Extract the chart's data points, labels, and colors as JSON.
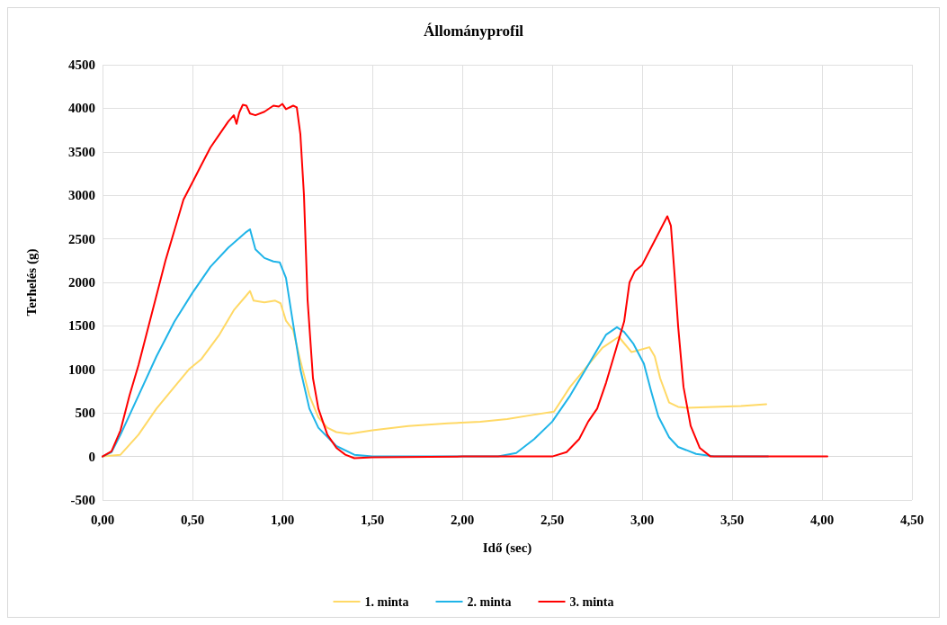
{
  "chart_data": {
    "type": "line",
    "title": "Állományprofil",
    "xlabel": "Idő (sec)",
    "ylabel": "Terhelés (g)",
    "xlim": [
      0,
      4.5
    ],
    "xticks": [
      {
        "value": 0,
        "label": "0,00"
      },
      {
        "value": 0.5,
        "label": "0,50"
      },
      {
        "value": 1,
        "label": "1,00"
      },
      {
        "value": 1.5,
        "label": "1,50"
      },
      {
        "value": 2,
        "label": "2,00"
      },
      {
        "value": 2.5,
        "label": "2,50"
      },
      {
        "value": 3,
        "label": "3,00"
      },
      {
        "value": 3.5,
        "label": "3,50"
      },
      {
        "value": 4,
        "label": "4,00"
      },
      {
        "value": 4.5,
        "label": "4,50"
      }
    ],
    "ylim": [
      -500,
      4500
    ],
    "yticks": [
      -500,
      0,
      500,
      1000,
      1500,
      2000,
      2500,
      3000,
      3500,
      4000,
      4500
    ],
    "grid": true,
    "legend": "bottom",
    "marker": "none",
    "line_style": "solid",
    "series": [
      {
        "name": "1. minta",
        "color": "#ffd966",
        "x": [
          0,
          0.1,
          0.2,
          0.3,
          0.4,
          0.48,
          0.55,
          0.65,
          0.73,
          0.8,
          0.82,
          0.84,
          0.9,
          0.96,
          0.99,
          1.02,
          1.06,
          1.1,
          1.15,
          1.2,
          1.25,
          1.3,
          1.37,
          1.5,
          1.7,
          1.92,
          2.1,
          2.25,
          2.4,
          2.51,
          2.6,
          2.7,
          2.78,
          2.87,
          2.9,
          2.94,
          2.98,
          3.04,
          3.07,
          3.1,
          3.15,
          3.2,
          3.25,
          3.4,
          3.55,
          3.69
        ],
        "values": [
          0,
          20,
          250,
          550,
          800,
          1000,
          1120,
          1400,
          1680,
          1850,
          1900,
          1790,
          1770,
          1790,
          1760,
          1560,
          1450,
          1100,
          700,
          450,
          330,
          280,
          260,
          300,
          350,
          380,
          400,
          430,
          480,
          515,
          800,
          1050,
          1250,
          1375,
          1300,
          1200,
          1220,
          1255,
          1150,
          900,
          620,
          570,
          560,
          570,
          580,
          600
        ]
      },
      {
        "name": "2. minta",
        "color": "#1fb4e8",
        "x": [
          0,
          0.05,
          0.1,
          0.2,
          0.3,
          0.4,
          0.5,
          0.6,
          0.7,
          0.8,
          0.82,
          0.85,
          0.9,
          0.95,
          0.985,
          1.02,
          1.05,
          1.1,
          1.15,
          1.2,
          1.3,
          1.4,
          1.5,
          2.2,
          2.3,
          2.4,
          2.5,
          2.6,
          2.7,
          2.8,
          2.86,
          2.9,
          2.95,
          3.01,
          3.05,
          3.09,
          3.15,
          3.2,
          3.3,
          3.4,
          3.7
        ],
        "values": [
          0,
          50,
          250,
          700,
          1150,
          1550,
          1880,
          2180,
          2400,
          2580,
          2610,
          2380,
          2280,
          2240,
          2230,
          2050,
          1650,
          1000,
          550,
          330,
          120,
          20,
          0,
          0,
          40,
          200,
          400,
          700,
          1050,
          1400,
          1485,
          1430,
          1300,
          1065,
          750,
          460,
          220,
          110,
          30,
          0,
          0
        ]
      },
      {
        "name": "3. minta",
        "color": "#ff0000",
        "x": [
          0,
          0.05,
          0.1,
          0.15,
          0.2,
          0.25,
          0.3,
          0.35,
          0.4,
          0.45,
          0.5,
          0.55,
          0.6,
          0.65,
          0.7,
          0.73,
          0.745,
          0.76,
          0.78,
          0.8,
          0.82,
          0.85,
          0.9,
          0.95,
          0.98,
          1.0,
          1.02,
          1.06,
          1.08,
          1.1,
          1.12,
          1.14,
          1.17,
          1.2,
          1.25,
          1.3,
          1.35,
          1.4,
          1.5,
          2.0,
          2.5,
          2.58,
          2.65,
          2.7,
          2.75,
          2.8,
          2.85,
          2.9,
          2.93,
          2.96,
          3.0,
          3.05,
          3.1,
          3.14,
          3.16,
          3.18,
          3.2,
          3.23,
          3.27,
          3.32,
          3.38,
          3.5,
          4.03
        ],
        "values": [
          0,
          60,
          300,
          700,
          1050,
          1450,
          1850,
          2250,
          2600,
          2950,
          3150,
          3350,
          3550,
          3700,
          3850,
          3920,
          3820,
          3950,
          4040,
          4030,
          3940,
          3920,
          3960,
          4030,
          4020,
          4050,
          3990,
          4030,
          4010,
          3700,
          3000,
          1800,
          900,
          550,
          250,
          100,
          20,
          -20,
          -10,
          0,
          0,
          50,
          200,
          400,
          550,
          850,
          1200,
          1550,
          2000,
          2130,
          2200,
          2400,
          2600,
          2760,
          2650,
          2100,
          1500,
          800,
          350,
          100,
          0,
          0,
          0
        ]
      }
    ]
  }
}
